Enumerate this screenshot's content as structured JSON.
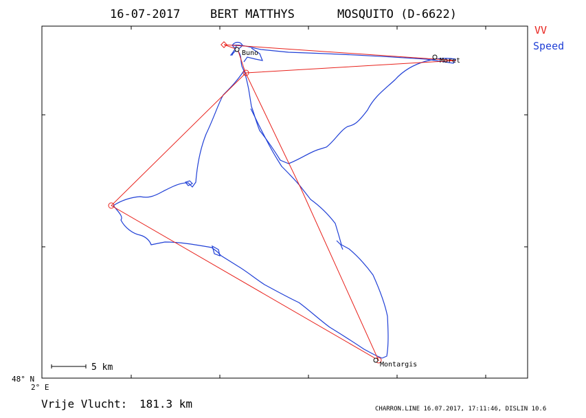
{
  "header": {
    "date": "16-07-2017",
    "pilot": "BERT MATTHYS",
    "glider": "MOSQUITO (D-6622)"
  },
  "legend": {
    "vv_label": "VV",
    "vv_color": "#e8201a",
    "speed_label": "Speed",
    "speed_color": "#1f3fd6"
  },
  "map": {
    "lat_label": "48° N",
    "lon_label": "2° E",
    "scale_label": "5 km"
  },
  "waypoints": [
    {
      "name": "Buno"
    },
    {
      "name": "Moret"
    },
    {
      "name": "Montargis"
    }
  ],
  "footer": {
    "result_label": "Vrije Vlucht:",
    "result_value": "181.3 km",
    "credits": "CHARRON.LINE 16.07.2017, 17:11:46, DISLIN 10.6"
  },
  "colors": {
    "vv_line": "#e8201a",
    "track": "#1f3fd6",
    "frame": "#000000"
  }
}
